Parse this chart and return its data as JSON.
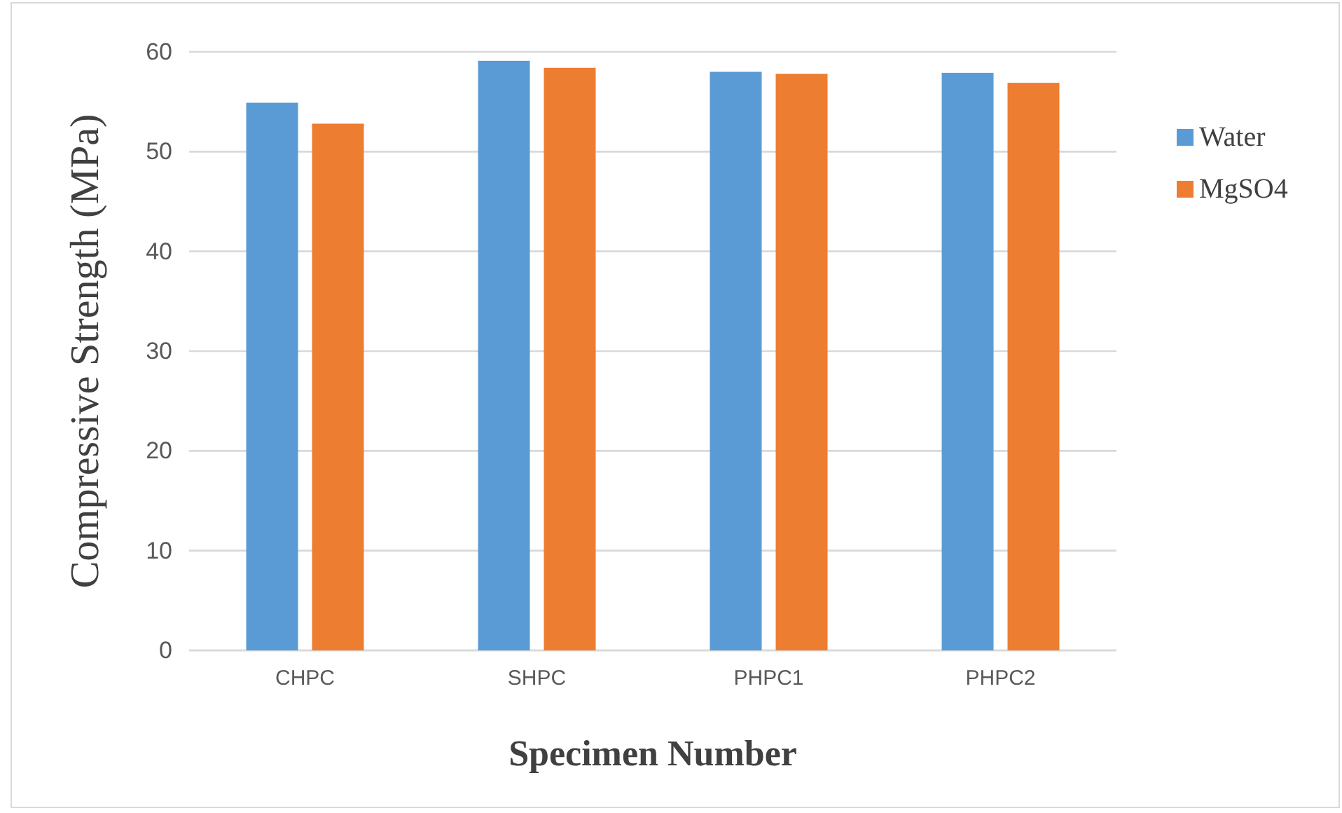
{
  "chart_data": {
    "type": "bar",
    "xlabel": "Specimen Number",
    "ylabel": "Compressive Strength (MPa)",
    "categories": [
      "CHPC",
      "SHPC",
      "PHPC1",
      "PHPC2"
    ],
    "series": [
      {
        "name": "Water",
        "color": "#5b9bd5",
        "values": [
          54.9,
          59.1,
          58.0,
          57.9
        ]
      },
      {
        "name": "MgSO4",
        "color": "#ed7d31",
        "values": [
          52.8,
          58.4,
          57.8,
          56.9
        ]
      }
    ],
    "ylim": [
      0,
      60
    ],
    "yticks": [
      0,
      10,
      20,
      30,
      40,
      50,
      60
    ],
    "grid": "y",
    "legend": "right"
  }
}
